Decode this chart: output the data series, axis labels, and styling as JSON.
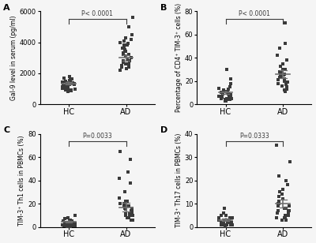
{
  "panels": [
    {
      "label": "A",
      "ylabel": "Gal-9 level in serum (pg/ml)",
      "ylim": [
        0,
        6000
      ],
      "yticks": [
        0,
        2000,
        4000,
        6000
      ],
      "pvalue": "P< 0.0001",
      "hc_mean": 1350,
      "hc_sem": 80,
      "ad_mean": 3000,
      "ad_sem": 180,
      "hc_data": [
        1800,
        1650,
        1500,
        1400,
        1350,
        1300,
        1250,
        1200,
        1150,
        1100,
        1050,
        1000,
        950,
        900,
        850,
        1600,
        1450,
        1300,
        1200,
        1100,
        1000,
        900,
        800,
        1700,
        1550,
        1400,
        1300,
        1200,
        1100,
        1000
      ],
      "ad_data": [
        5600,
        5000,
        4500,
        4200,
        4100,
        4000,
        3900,
        3800,
        3700,
        3600,
        3500,
        3400,
        3300,
        3200,
        3100,
        3000,
        2900,
        2800,
        2700,
        2600,
        2500,
        2400,
        2300,
        2200,
        4300,
        3800,
        3200,
        2800,
        2600,
        2400
      ]
    },
    {
      "label": "B",
      "ylabel": "Percentage of CD4⁺ TIM-3⁺ cells (%)",
      "ylim": [
        0,
        80
      ],
      "yticks": [
        0,
        20,
        40,
        60,
        80
      ],
      "pvalue": "P< 0.0001",
      "hc_mean": 10,
      "hc_sem": 1.2,
      "ad_mean": 26,
      "ad_sem": 3.5,
      "hc_data": [
        30,
        22,
        18,
        15,
        14,
        13,
        12,
        11,
        10,
        10,
        9,
        9,
        8,
        8,
        8,
        7,
        7,
        7,
        6,
        6,
        6,
        5,
        5,
        5,
        5,
        4,
        4,
        4,
        3,
        3
      ],
      "ad_data": [
        70,
        52,
        48,
        42,
        38,
        35,
        33,
        30,
        28,
        27,
        26,
        25,
        25,
        24,
        23,
        22,
        21,
        20,
        19,
        18,
        17,
        16,
        15,
        14,
        13,
        12,
        11,
        30,
        28,
        26
      ]
    },
    {
      "label": "C",
      "ylabel": "TIM-3⁺ Th1 cells in PBMCs (%)",
      "ylim": [
        0,
        80
      ],
      "yticks": [
        0,
        20,
        40,
        60,
        80
      ],
      "pvalue": "P=0.0033",
      "hc_mean": 4.5,
      "hc_sem": 0.5,
      "ad_mean": 17,
      "ad_sem": 3.5,
      "hc_data": [
        10,
        8,
        7,
        6,
        6,
        5,
        5,
        5,
        4,
        4,
        4,
        4,
        3,
        3,
        3,
        3,
        3,
        2,
        2,
        2,
        2,
        2,
        2,
        1,
        1,
        1,
        1,
        1,
        1,
        1,
        1,
        1,
        0,
        0
      ],
      "ad_data": [
        65,
        58,
        47,
        42,
        38,
        30,
        25,
        22,
        20,
        18,
        16,
        14,
        12,
        10,
        8,
        20,
        18,
        16,
        14,
        12,
        10,
        8,
        6,
        22,
        18,
        15,
        12,
        10,
        8,
        6
      ]
    },
    {
      "label": "D",
      "ylabel": "TIM-3⁺ Th17 cells in PBMCs (%)",
      "ylim": [
        0,
        40
      ],
      "yticks": [
        0,
        10,
        20,
        30,
        40
      ],
      "pvalue": "P=0.0333",
      "hc_mean": 3,
      "hc_sem": 0.5,
      "ad_mean": 10,
      "ad_sem": 1.8,
      "hc_data": [
        8,
        6,
        5,
        5,
        4,
        4,
        4,
        3,
        3,
        3,
        3,
        3,
        2,
        2,
        2,
        2,
        2,
        2,
        2,
        1,
        1,
        1,
        1,
        1,
        1,
        1,
        1,
        1,
        1,
        0
      ],
      "ad_data": [
        35,
        28,
        22,
        20,
        18,
        16,
        15,
        14,
        13,
        12,
        11,
        10,
        10,
        9,
        9,
        8,
        8,
        7,
        7,
        7,
        6,
        6,
        5,
        5,
        5,
        4,
        4,
        4,
        3,
        3
      ]
    }
  ],
  "dot_color": "#3a3a3a",
  "mean_line_color": "#707070",
  "bracket_color": "#3a3a3a",
  "background_color": "#f5f5f5",
  "fontsize": 7,
  "marker": "s",
  "marker_size": 3
}
